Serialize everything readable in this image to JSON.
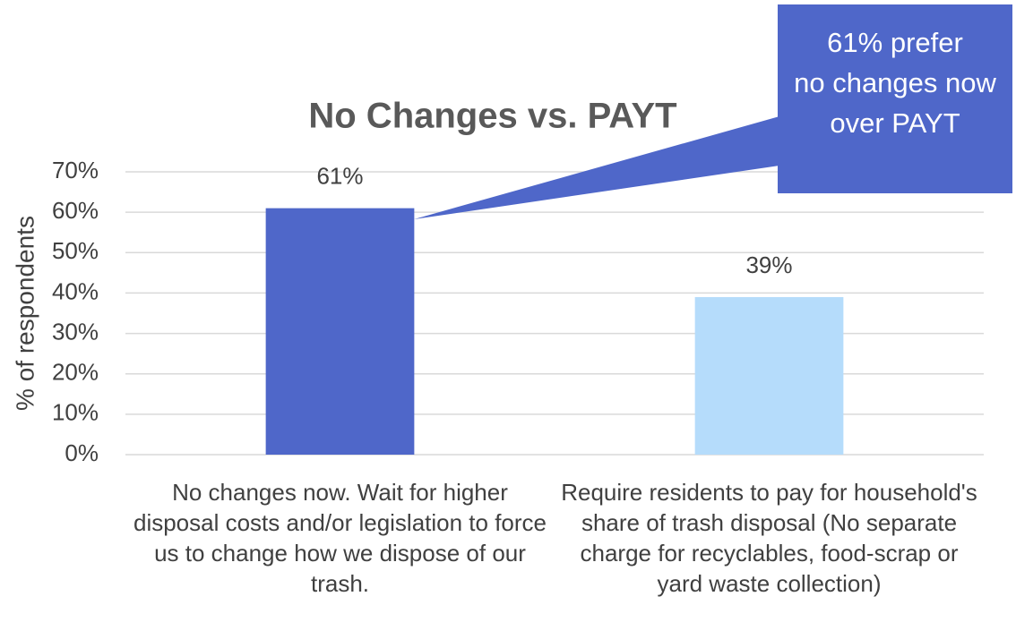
{
  "chart_data": {
    "type": "bar",
    "title": "No Changes vs. PAYT",
    "y_label": "% of respondents",
    "categories": [
      "No changes now. Wait for higher disposal costs and/or legislation to force us to change how we dispose of our trash.",
      "Require residents to pay for household's share of trash disposal (No separate charge for recyclables, food-scrap or yard waste collection)"
    ],
    "values": [
      61,
      39
    ],
    "value_labels": [
      "61%",
      "39%"
    ],
    "colors": [
      "#4f67c9",
      "#b5dcfb"
    ],
    "ylim": [
      0,
      70
    ],
    "yticks": [
      {
        "value": 0,
        "label": "0%"
      },
      {
        "value": 10,
        "label": "10%"
      },
      {
        "value": 20,
        "label": "20%"
      },
      {
        "value": 30,
        "label": "30%"
      },
      {
        "value": 40,
        "label": "40%"
      },
      {
        "value": 50,
        "label": "50%"
      },
      {
        "value": 60,
        "label": "60%"
      },
      {
        "value": 70,
        "label": "70%"
      }
    ],
    "grid": true,
    "annotation": [
      "61%  prefer",
      "no changes now",
      "over PAYT"
    ]
  }
}
